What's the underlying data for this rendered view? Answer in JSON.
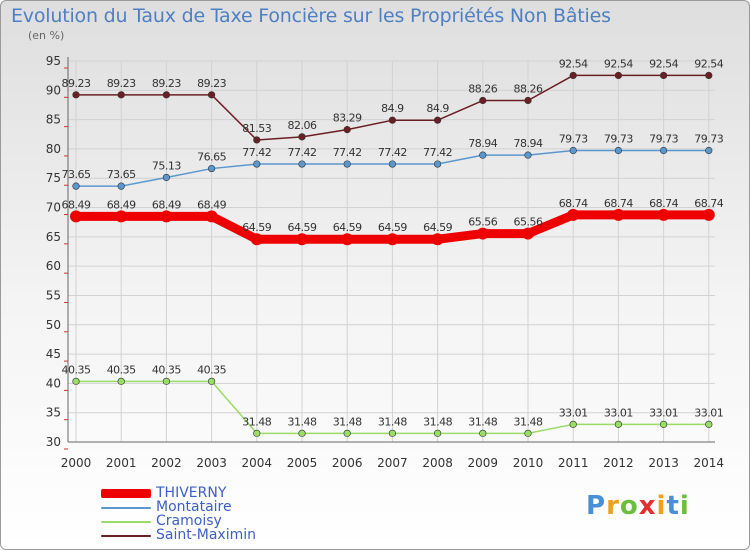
{
  "chart_data": {
    "type": "line",
    "title": "Evolution du Taux de Taxe Foncière sur les Propriétés Non Bâties",
    "subtitle": "(en %)",
    "x": [
      "2000",
      "2001",
      "2002",
      "2003",
      "2004",
      "2005",
      "2006",
      "2007",
      "2008",
      "2009",
      "2010",
      "2011",
      "2012",
      "2013",
      "2014"
    ],
    "ylim": [
      30,
      95
    ],
    "yticks": [
      30,
      35,
      40,
      45,
      50,
      55,
      60,
      65,
      70,
      75,
      80,
      85,
      90,
      95
    ],
    "grid": true,
    "legend_position": "bottom-left",
    "series": [
      {
        "name": "THIVERNY",
        "color": "#ee0000",
        "values": [
          68.49,
          68.49,
          68.49,
          68.49,
          64.59,
          64.59,
          64.59,
          64.59,
          64.59,
          65.56,
          65.56,
          68.74,
          68.74,
          68.74,
          68.74
        ],
        "labels": [
          "68.49",
          "68.49",
          "68.49",
          "68.49",
          "64.59",
          "64.59",
          "64.59",
          "64.59",
          "64.59",
          "65.56",
          "65.56",
          "68.74",
          "68.74",
          "68.74",
          "68.74"
        ]
      },
      {
        "name": "Montataire",
        "color": "#5b97cf",
        "values": [
          73.65,
          73.65,
          75.13,
          76.65,
          77.42,
          77.42,
          77.42,
          77.42,
          77.42,
          78.94,
          78.94,
          79.73,
          79.73,
          79.73,
          79.73
        ],
        "labels": [
          "73.65",
          "73.65",
          "75.13",
          "76.65",
          "77.42",
          "77.42",
          "77.42",
          "77.42",
          "77.42",
          "78.94",
          "78.94",
          "79.73",
          "79.73",
          "79.73",
          "79.73"
        ]
      },
      {
        "name": "Cramoisy",
        "color": "#99dd66",
        "values": [
          40.35,
          40.35,
          40.35,
          40.35,
          31.48,
          31.48,
          31.48,
          31.48,
          31.48,
          31.48,
          31.48,
          33.01,
          33.01,
          33.01,
          33.01
        ],
        "labels": [
          "40.35",
          "40.35",
          "40.35",
          "40.35",
          "31.48",
          "31.48",
          "31.48",
          "31.48",
          "31.48",
          "31.48",
          "31.48",
          "33.01",
          "33.01",
          "33.01",
          "33.01"
        ]
      },
      {
        "name": "Saint-Maximin",
        "color": "#6b1f24",
        "values": [
          89.23,
          89.23,
          89.23,
          89.23,
          81.53,
          82.06,
          83.29,
          84.9,
          84.9,
          88.26,
          88.26,
          92.54,
          92.54,
          92.54,
          92.54
        ],
        "labels": [
          "89.23",
          "89.23",
          "89.23",
          "89.23",
          "81.53",
          "82.06",
          "83.29",
          "84.9",
          "84.9",
          "88.26",
          "88.26",
          "92.54",
          "92.54",
          "92.54",
          "92.54"
        ]
      }
    ]
  },
  "logo": {
    "letters": [
      "P",
      "r",
      "o",
      "x",
      "i",
      "t",
      "i"
    ],
    "colors": [
      "#4a90d9",
      "#f0a020",
      "#6cbf3c",
      "#e23030",
      "#f0a020",
      "#4a90d9",
      "#6cbf3c"
    ]
  }
}
